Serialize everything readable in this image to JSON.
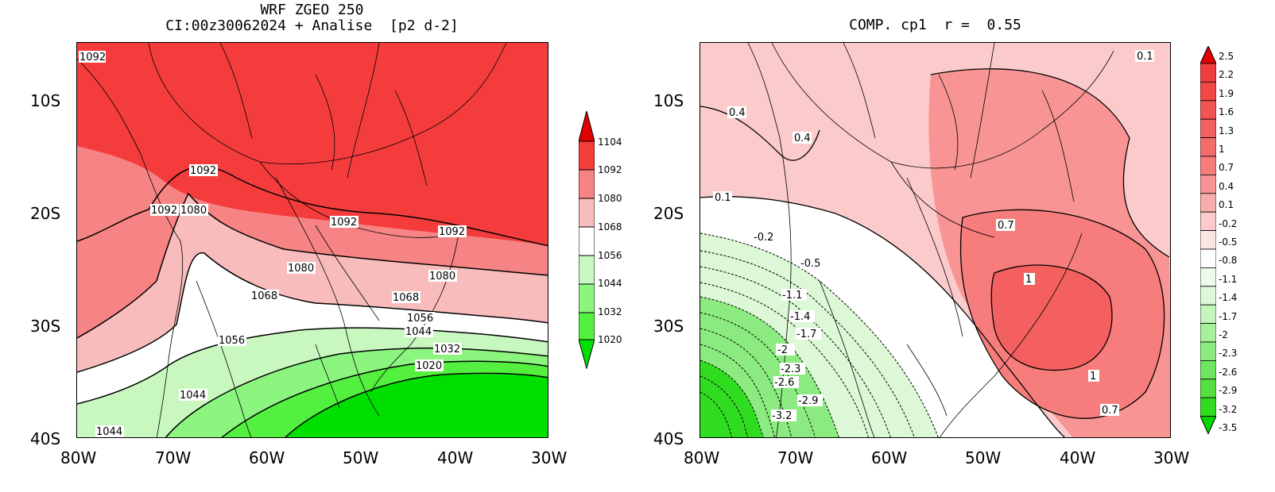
{
  "left_panel": {
    "title_line1": "WRF ZGEO 250",
    "title_line2": "CI:00z30062024 + Analise  [p2 d-2]",
    "y_ticks": [
      "10S",
      "20S",
      "30S",
      "40S"
    ],
    "x_ticks": [
      "80W",
      "70W",
      "60W",
      "50W",
      "40W",
      "30W"
    ],
    "contour_labels": [
      "1092",
      "1092",
      "1092",
      "1080",
      "1092",
      "1092",
      "1080",
      "1080",
      "1068",
      "1068",
      "1056",
      "1044",
      "1032",
      "1020",
      "1056",
      "1044",
      "1044"
    ],
    "colorbar": {
      "labels": [
        "1104",
        "1092",
        "1080",
        "1068",
        "1056",
        "1044",
        "1032",
        "1020"
      ],
      "colors": [
        "#e00000",
        "#f53c3c",
        "#f68484",
        "#f9bcbc",
        "#ffffff",
        "#c8f8c0",
        "#8cf580",
        "#54f040",
        "#00e000"
      ]
    }
  },
  "right_panel": {
    "title": "COMP. cp1  r =  0.55",
    "y_ticks": [
      "10S",
      "20S",
      "30S",
      "40S"
    ],
    "x_ticks": [
      "80W",
      "70W",
      "60W",
      "50W",
      "40W",
      "30W"
    ],
    "contour_labels": [
      "0.4",
      "0.4",
      "0.1",
      "0.1",
      "-0.2",
      "-0.5",
      "-1.1",
      "-1.4",
      "-1.7",
      "-2",
      "-2.3",
      "-2.6",
      "-2.9",
      "-3.2",
      "0.7",
      "1",
      "1",
      "0.7"
    ],
    "colorbar": {
      "labels": [
        "2.5",
        "2.2",
        "1.9",
        "1.6",
        "1.3",
        "1",
        "0.7",
        "0.4",
        "0.1",
        "-0.2",
        "-0.5",
        "-0.8",
        "-1.1",
        "-1.4",
        "-1.7",
        "-2",
        "-2.3",
        "-2.6",
        "-2.9",
        "-3.2",
        "-3.5"
      ],
      "colors": [
        "#e00000",
        "#f03c3c",
        "#f24848",
        "#f35454",
        "#f46060",
        "#f56c6c",
        "#f77c7c",
        "#f89494",
        "#f9acac",
        "#fbcaca",
        "#fde4e4",
        "#ffffff",
        "#eefbea",
        "#dcf8d6",
        "#c4f5bc",
        "#a8f09c",
        "#8ceb80",
        "#6ee660",
        "#54e040",
        "#30dc20",
        "#00d800"
      ]
    }
  }
}
